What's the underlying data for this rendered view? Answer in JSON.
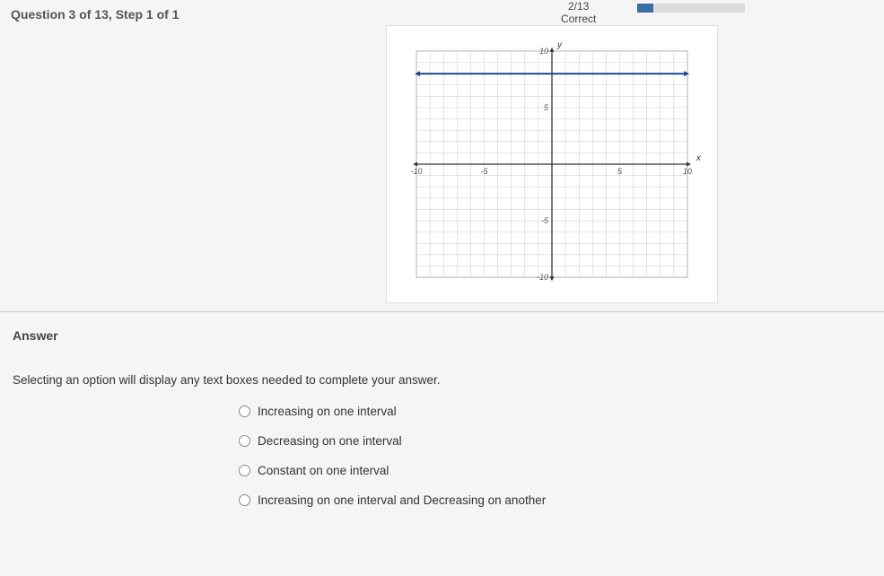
{
  "header": {
    "question_label": "Question 3 of 13, Step 1 of 1",
    "score_top": "2/13",
    "score_bottom": "Correct",
    "progress_pct": 15
  },
  "graph": {
    "xlim": [
      -10,
      10
    ],
    "ylim": [
      -10,
      10
    ],
    "tick_major": 5,
    "tick_minor": 1,
    "x_label": "x",
    "y_label": "y",
    "tick_labels_x": [
      "-10",
      "-5",
      "5",
      "10"
    ],
    "tick_labels_y": [
      "-10",
      "-5",
      "5",
      "10"
    ],
    "axis_color": "#333333",
    "grid_color": "#cccccc",
    "background_color": "#ffffff",
    "function_line": {
      "type": "constant",
      "y_value": 8,
      "color": "#1a4b8c",
      "width": 2
    },
    "tick_fontsize": 9
  },
  "answer": {
    "heading": "Answer",
    "hint": "Selecting an option will display any text boxes needed to complete your answer.",
    "options": [
      "Increasing on one interval",
      "Decreasing on one interval",
      "Constant on one interval",
      "Increasing on one interval and Decreasing on another"
    ]
  },
  "colors": {
    "page_bg": "#f5f5f5",
    "text_primary": "#333333",
    "text_heading": "#555555",
    "progress_fill": "#3a6ea5",
    "progress_bg": "#dddddd"
  }
}
